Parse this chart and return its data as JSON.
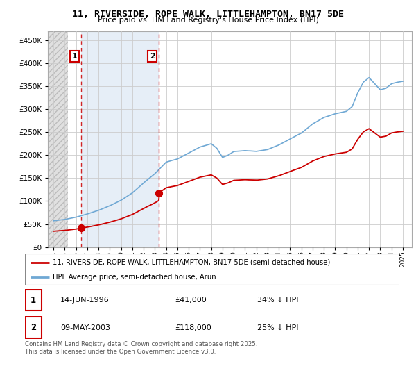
{
  "title": "11, RIVERSIDE, ROPE WALK, LITTLEHAMPTON, BN17 5DE",
  "subtitle": "Price paid vs. HM Land Registry's House Price Index (HPI)",
  "legend_line1": "11, RIVERSIDE, ROPE WALK, LITTLEHAMPTON, BN17 5DE (semi-detached house)",
  "legend_line2": "HPI: Average price, semi-detached house, Arun",
  "footer": "Contains HM Land Registry data © Crown copyright and database right 2025.\nThis data is licensed under the Open Government Licence v3.0.",
  "transaction1_date": "14-JUN-1996",
  "transaction1_price": "£41,000",
  "transaction1_hpi": "34% ↓ HPI",
  "transaction2_date": "09-MAY-2003",
  "transaction2_price": "£118,000",
  "transaction2_hpi": "25% ↓ HPI",
  "red_color": "#cc0000",
  "blue_color": "#6fa8d4",
  "ylim": [
    0,
    470000
  ],
  "yticks": [
    0,
    50000,
    100000,
    150000,
    200000,
    250000,
    300000,
    350000,
    400000,
    450000
  ],
  "grid_color": "#cccccc",
  "transaction1_x": 1996.45,
  "transaction2_x": 2003.37,
  "transaction1_y": 41000,
  "transaction2_y": 118000,
  "hatch_color": "#d8d8d8",
  "highlight_color": "#dce8f5",
  "xlim_left": 1993.5,
  "xlim_right": 2025.8
}
